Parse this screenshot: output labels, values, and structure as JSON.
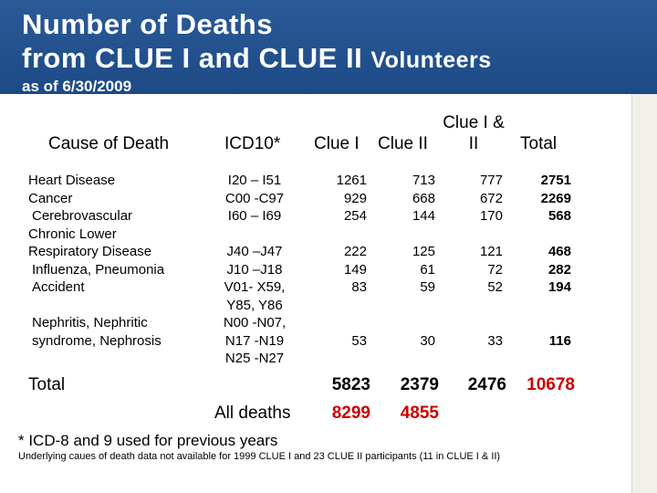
{
  "title": {
    "line1": "Number of Deaths",
    "line2_main": "from CLUE I and CLUE II",
    "line2_small": "Volunteers",
    "subtitle": "as of 6/30/2009"
  },
  "table": {
    "headers": {
      "cause": "Cause of Death",
      "icd": "ICD10*",
      "clue1": "Clue I",
      "clue2": "Clue II",
      "both_line1": "Clue I &",
      "both_line2": "II",
      "total": "Total"
    },
    "causes": [
      "Heart Disease",
      "Cancer",
      " Cerebrovascular",
      "Chronic Lower",
      "Respiratory Disease",
      " Influenza, Pneumonia",
      " Accident",
      " Nephritis, Nephritic",
      " syndrome, Nephrosis"
    ],
    "icd": [
      "I20 – I51",
      "C00 -C97",
      "I60 – I69",
      "J40 –J47",
      "J10 –J18",
      "V01- X59,",
      "Y85, Y86",
      "N00 -N07,",
      "N17 -N19",
      "N25 -N27"
    ],
    "clue1": [
      "1261",
      "929",
      "254",
      "222",
      "149",
      "83",
      "53"
    ],
    "clue2": [
      "713",
      "668",
      "144",
      "125",
      "61",
      "59",
      "30"
    ],
    "both": [
      "777",
      "672",
      "170",
      "121",
      "72",
      "52",
      "33"
    ],
    "total": [
      "2751",
      "2269",
      "568",
      "468",
      "282",
      "194",
      "116"
    ],
    "totals_row": {
      "label": "Total",
      "clue1": "5823",
      "clue2": "2379",
      "both": "2476",
      "total": "10678"
    },
    "all_deaths_row": {
      "label": "All deaths",
      "clue1": "8299",
      "clue2": "4855"
    }
  },
  "footnotes": {
    "icd_note": "* ICD-8 and 9 used for previous years",
    "underlying_note": "Underlying caues of death data not available for 1999 CLUE I and 23 CLUE II participants (11 in CLUE I & II)"
  },
  "colors": {
    "header_bg": "#1f4e8c",
    "grand_total": "#cc0000"
  }
}
